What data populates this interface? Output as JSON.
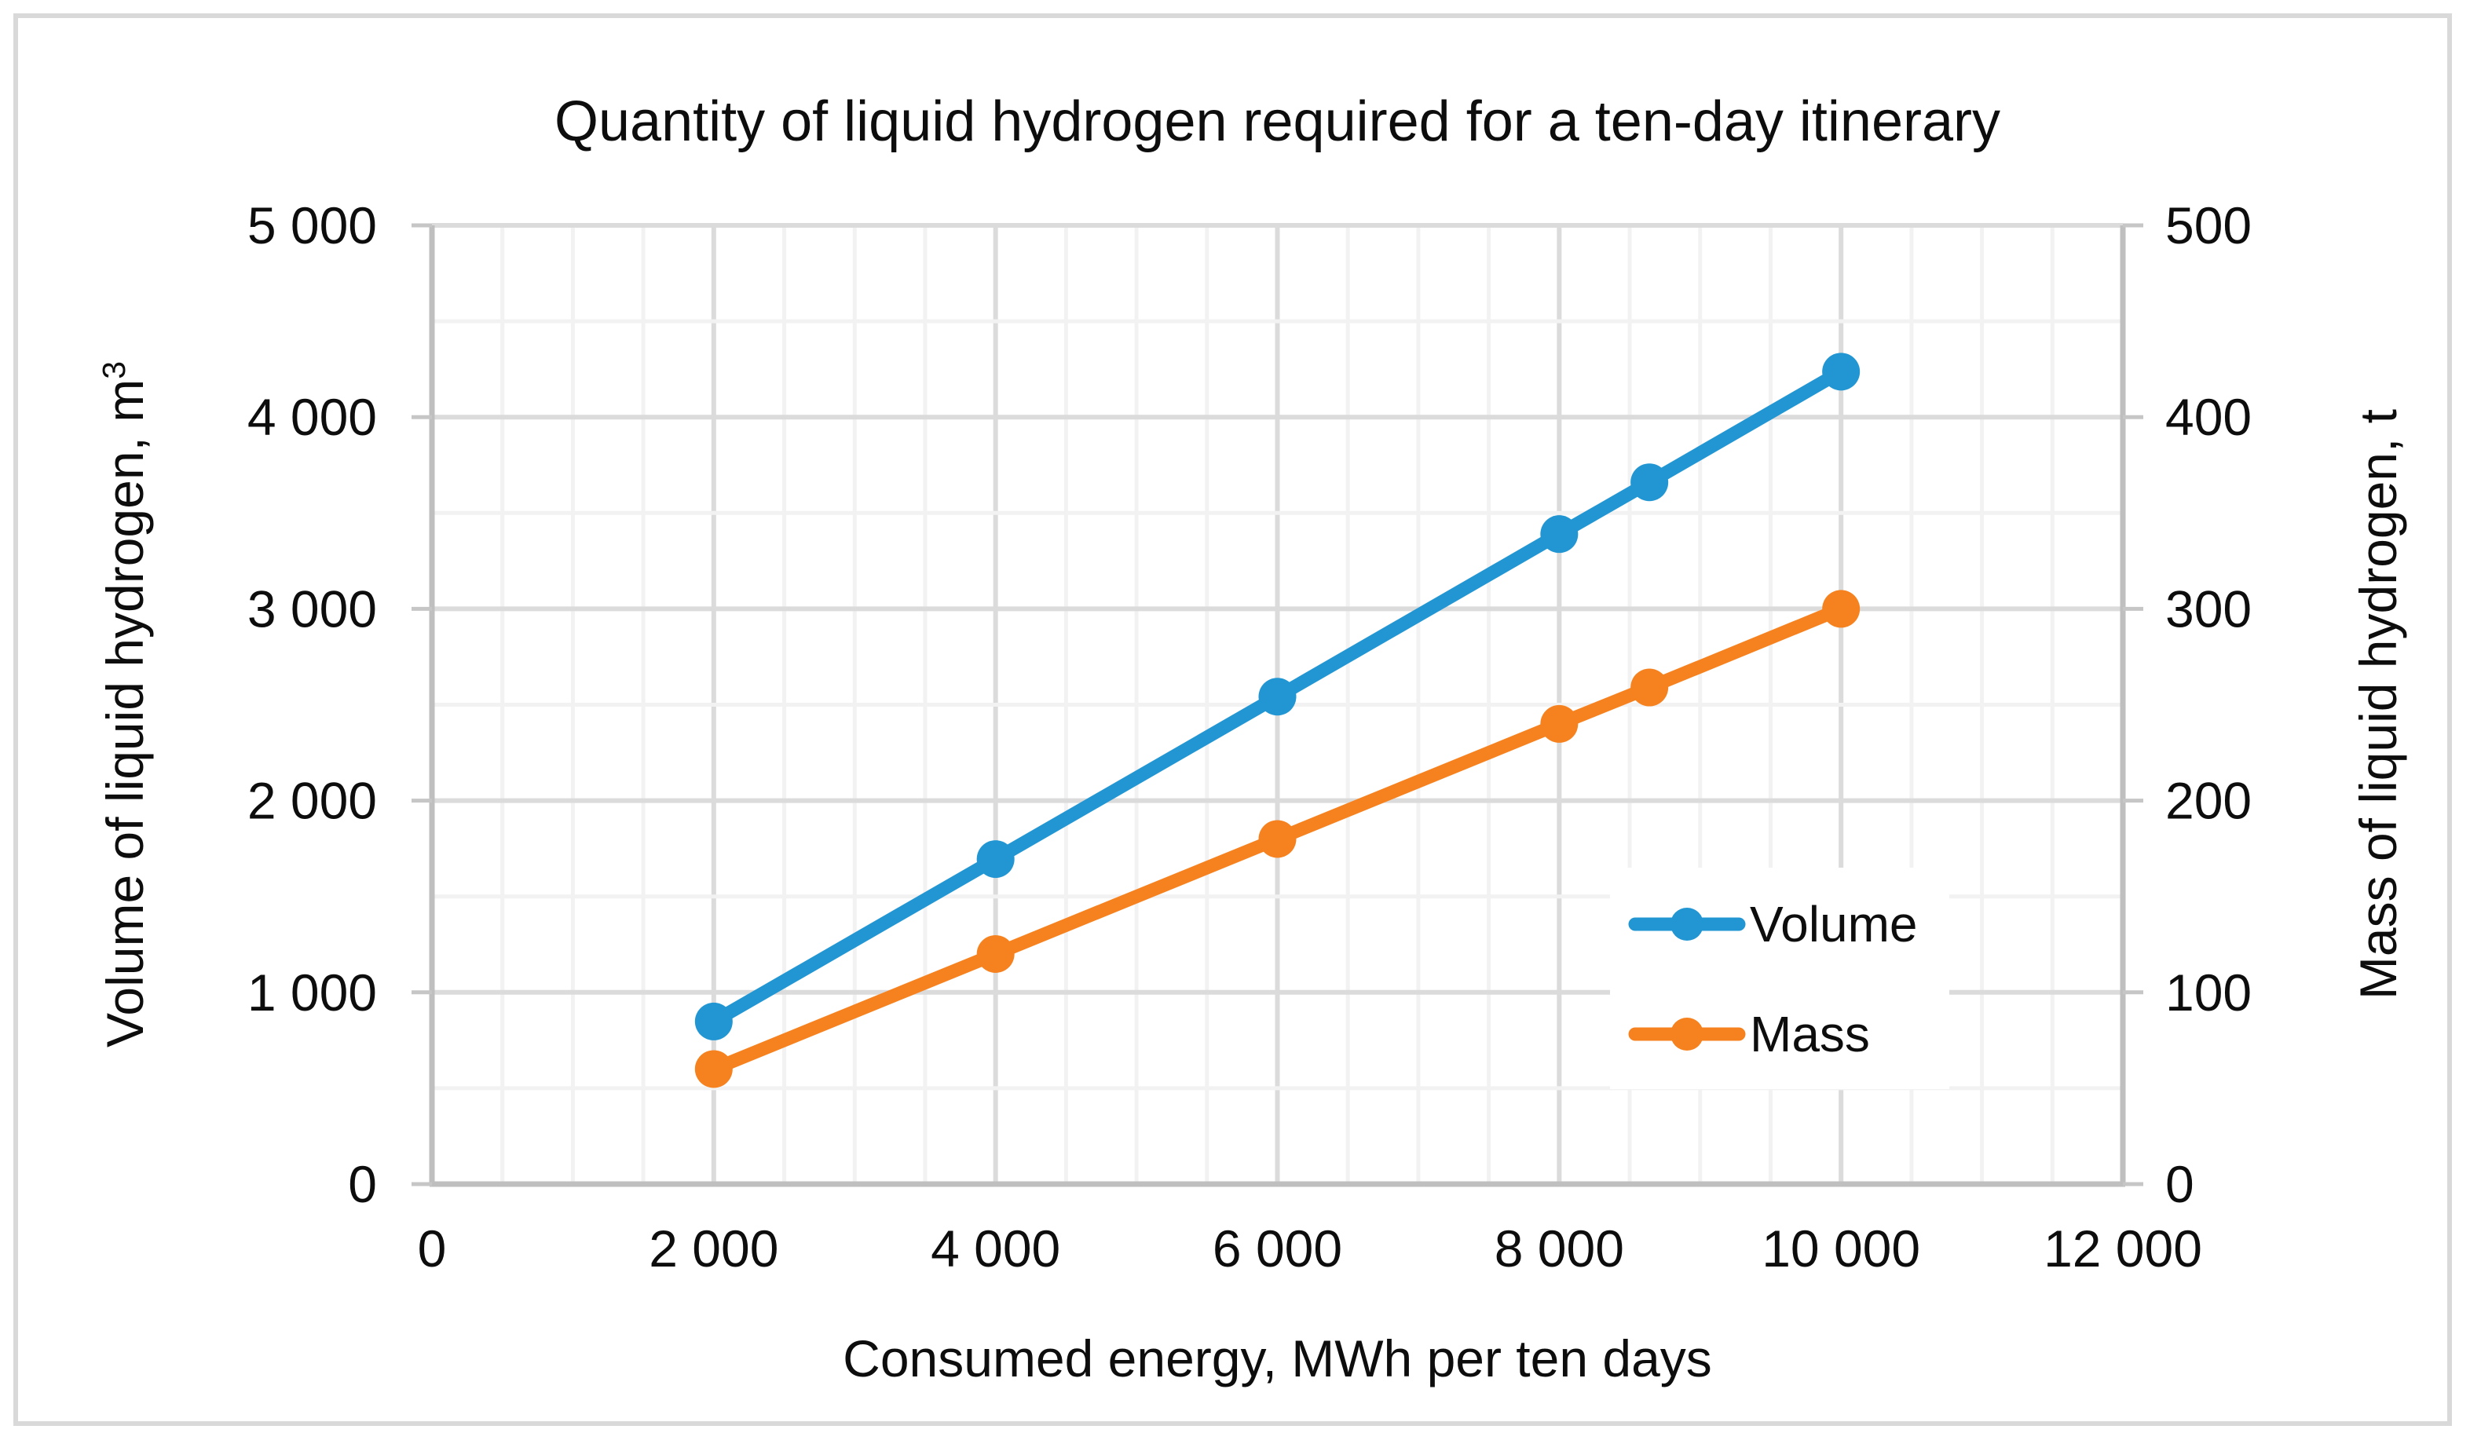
{
  "chart_data": {
    "type": "line",
    "title": "Quantity of liquid hydrogen required for a ten-day itinerary",
    "x_axis": {
      "label": "Consumed energy, MWh per ten days",
      "min": 0,
      "max": 12000,
      "major_unit": 2000,
      "minor_unit": 500,
      "ticks": [
        {
          "v": 0,
          "label": "0"
        },
        {
          "v": 2000,
          "label": "2 000"
        },
        {
          "v": 4000,
          "label": "4 000"
        },
        {
          "v": 6000,
          "label": "6 000"
        },
        {
          "v": 8000,
          "label": "8 000"
        },
        {
          "v": 10000,
          "label": "10 000"
        },
        {
          "v": 12000,
          "label": "12 000"
        }
      ]
    },
    "y_left": {
      "label": "Volume of liquid hydrogen, m³",
      "min": 0,
      "max": 5000,
      "major_unit": 1000,
      "minor_unit": 500,
      "ticks": [
        {
          "v": 0,
          "label": "0"
        },
        {
          "v": 1000,
          "label": "1 000"
        },
        {
          "v": 2000,
          "label": "2 000"
        },
        {
          "v": 3000,
          "label": "3 000"
        },
        {
          "v": 4000,
          "label": "4 000"
        },
        {
          "v": 5000,
          "label": "5 000"
        }
      ]
    },
    "y_right": {
      "label": "Mass of liquid hydrogen, t",
      "min": 0,
      "max": 500,
      "major_unit": 100,
      "ticks": [
        {
          "v": 0,
          "label": "0"
        },
        {
          "v": 100,
          "label": "100"
        },
        {
          "v": 200,
          "label": "200"
        },
        {
          "v": 300,
          "label": "300"
        },
        {
          "v": 400,
          "label": "400"
        },
        {
          "v": 500,
          "label": "500"
        }
      ]
    },
    "series": [
      {
        "name": "Volume",
        "axis": "left",
        "color": "#2196D3",
        "x": [
          2000,
          4000,
          6000,
          8000,
          8640,
          10000
        ],
        "values": [
          848,
          1695,
          2542,
          3390,
          3660,
          4237
        ]
      },
      {
        "name": "Mass",
        "axis": "right",
        "color": "#F6821F",
        "x": [
          2000,
          4000,
          6000,
          8000,
          8640,
          10000
        ],
        "values": [
          60,
          120,
          180,
          240,
          259,
          300
        ]
      }
    ],
    "legend": {
      "position": "inside-bottom-right",
      "entries": [
        "Volume",
        "Mass"
      ]
    },
    "grid": {
      "major_color": "#DBDBDB",
      "minor_color": "#F2F2F2",
      "axis_color": "#BFBFBF",
      "tick_color": "#C6C6C6",
      "background": "#FFFFFF"
    }
  }
}
